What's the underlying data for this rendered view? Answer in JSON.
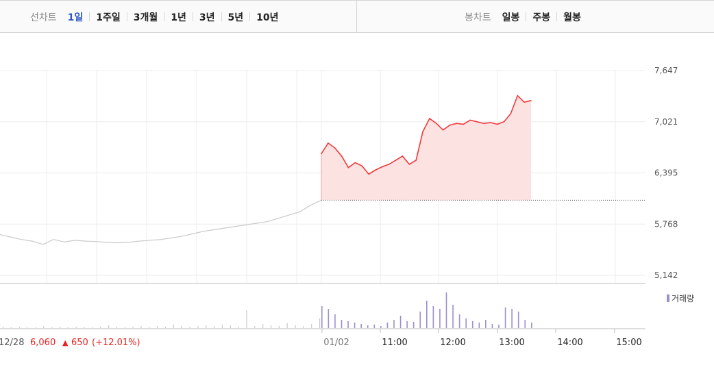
{
  "toolbar": {
    "line_chart_label": "선차트",
    "period_tabs": [
      "1일",
      "1주일",
      "3개월",
      "1년",
      "3년",
      "5년",
      "10년"
    ],
    "active_period": "1일",
    "candle_chart_label": "봉차트",
    "candle_tabs": [
      "일봉",
      "주봉",
      "월봉"
    ]
  },
  "chart_data": {
    "type": "line",
    "y_ticks": [
      "7,647",
      "7,021",
      "6,395",
      "5,768",
      "5,142"
    ],
    "ylim": [
      5142,
      7647
    ],
    "x_ticks": [
      "01/02",
      "11:00",
      "12:00",
      "13:00",
      "14:00",
      "15:00"
    ],
    "previous_close": 6060,
    "previous_session": {
      "label": "12/28",
      "close_value": "6,060",
      "change_arrow": "▲",
      "change": "650",
      "change_pct": "(+12.01%)",
      "values": [
        5640,
        5610,
        5580,
        5560,
        5520,
        5580,
        5550,
        5570,
        5560,
        5555,
        5545,
        5540,
        5545,
        5560,
        5570,
        5580,
        5600,
        5620,
        5650,
        5680,
        5700,
        5720,
        5740,
        5760,
        5780,
        5800,
        5840,
        5880,
        5920,
        6000,
        6060
      ]
    },
    "series": [
      {
        "values": [
          6630,
          6760,
          6700,
          6600,
          6460,
          6520,
          6480,
          6380,
          6430,
          6470,
          6500,
          6550,
          6600,
          6500,
          6550,
          6900,
          7060,
          7000,
          6920,
          6980,
          7000,
          6990,
          7040,
          7020,
          7000,
          7010,
          6990,
          7020,
          7120,
          7340,
          7260,
          7280
        ]
      }
    ],
    "volume_label": "거래량",
    "volume_color": "#9c8fd0",
    "volume_prev": [
      2,
      1,
      2,
      1,
      1,
      3,
      1,
      2,
      1,
      2,
      1,
      1,
      2,
      4,
      2,
      1,
      2,
      3,
      2,
      3,
      2,
      5,
      3,
      2,
      3,
      4,
      3,
      5,
      4,
      2,
      26,
      3,
      6,
      4,
      3,
      7,
      4,
      3,
      6,
      14
    ],
    "volume": [
      32,
      28,
      20,
      12,
      10,
      8,
      6,
      4,
      5,
      3,
      8,
      12,
      18,
      10,
      9,
      24,
      40,
      32,
      28,
      52,
      34,
      20,
      14,
      10,
      8,
      12,
      6,
      5,
      30,
      28,
      24,
      12,
      8
    ]
  }
}
